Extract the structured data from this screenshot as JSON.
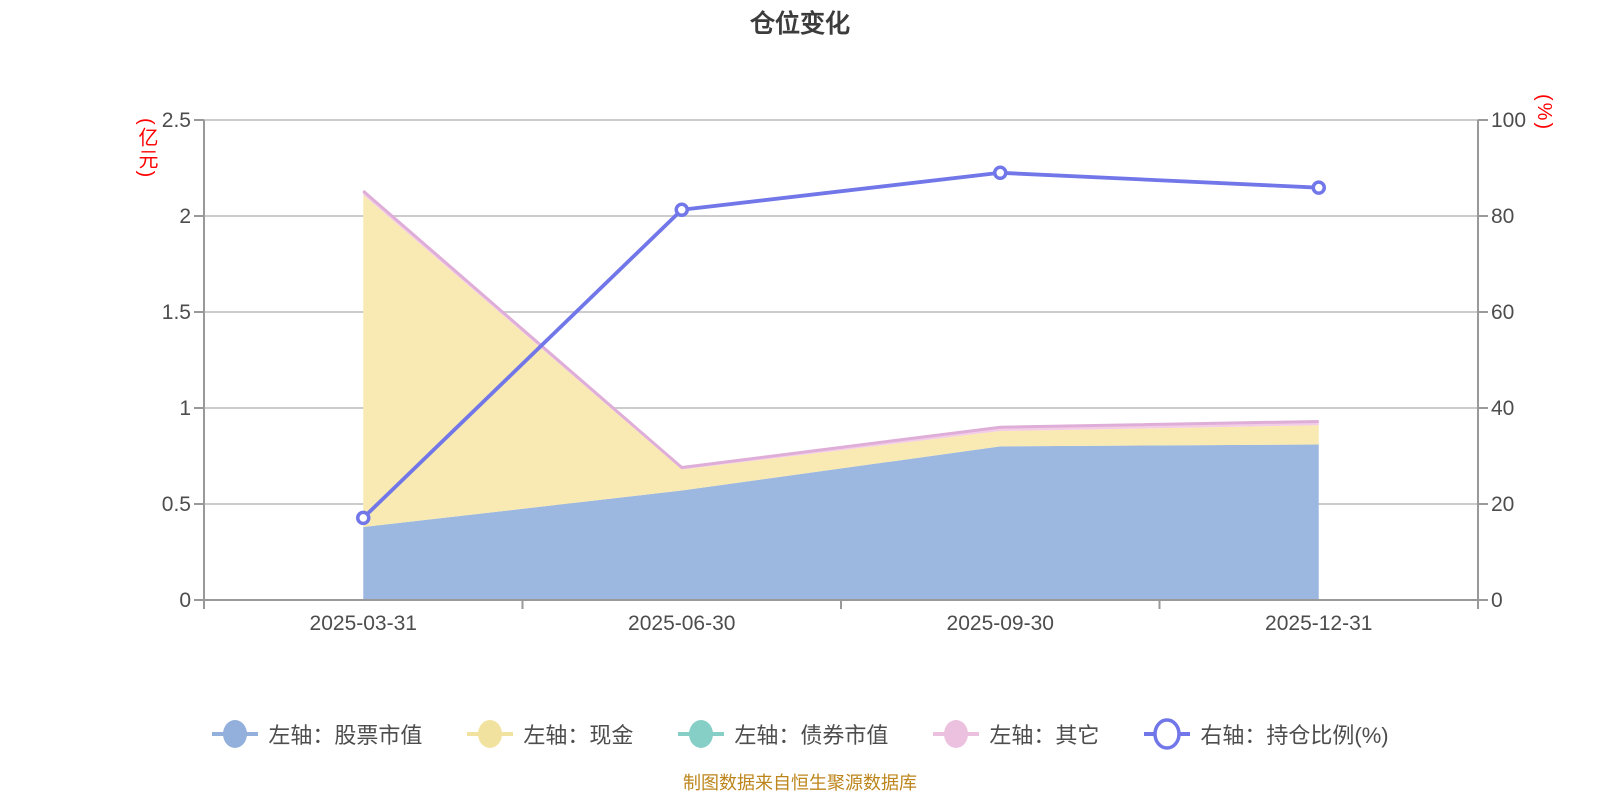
{
  "footer": {
    "text": "制图数据来自恒生聚源数据库",
    "color": "#bd861c"
  },
  "chart_data": {
    "type": "area",
    "title": "仓位变化",
    "categories": [
      "2025-03-31",
      "2025-06-30",
      "2025-09-30",
      "2025-12-31"
    ],
    "series": [
      {
        "key": "stock",
        "name": "左轴：股票市值",
        "kind": "area",
        "axis": "left",
        "stack": "total",
        "color": "#93afdb",
        "fill": "#9db8e0",
        "values": [
          0.38,
          0.57,
          0.8,
          0.81
        ]
      },
      {
        "key": "cash",
        "name": "左轴：现金",
        "kind": "area",
        "axis": "left",
        "stack": "total",
        "color": "#f1e2a0",
        "fill": "#f8eab2",
        "values": [
          1.73,
          0.11,
          0.08,
          0.1
        ]
      },
      {
        "key": "bond",
        "name": "左轴：债券市值",
        "kind": "area",
        "axis": "left",
        "stack": "total",
        "color": "#86cfc7",
        "fill": "#a5ded7",
        "values": [
          0,
          0,
          0,
          0
        ]
      },
      {
        "key": "other",
        "name": "左轴：其它",
        "kind": "area",
        "axis": "left",
        "stack": "total",
        "color": "#ecc1df",
        "fill": "#f3cce6",
        "stroke": "#dfaed8",
        "values": [
          0.02,
          0.01,
          0.02,
          0.02
        ]
      },
      {
        "key": "ratio",
        "name": "右轴：持仓比例(%)",
        "kind": "line",
        "axis": "right",
        "color": "#7176e8",
        "marker_fill": "#ffffff",
        "values": [
          17.1,
          81.3,
          89.0,
          85.9
        ]
      }
    ],
    "left_axis": {
      "name": "(亿元)",
      "min": 0,
      "max": 2.5,
      "tick_labels": [
        "2.5",
        "2",
        "1.5",
        "1",
        "0.5",
        "0"
      ],
      "name_color": "#fe0000"
    },
    "right_axis": {
      "name": "(%)",
      "min": 0,
      "max": 100,
      "tick_labels": [
        "100",
        "80",
        "60",
        "40",
        "20",
        "0"
      ],
      "name_color": "#fe0000"
    },
    "grid": true,
    "legend_position": "bottom",
    "colors": {
      "grid_line": "#cccccc",
      "axis_line": "#999999",
      "tick_text": "#4d4d4d"
    }
  }
}
